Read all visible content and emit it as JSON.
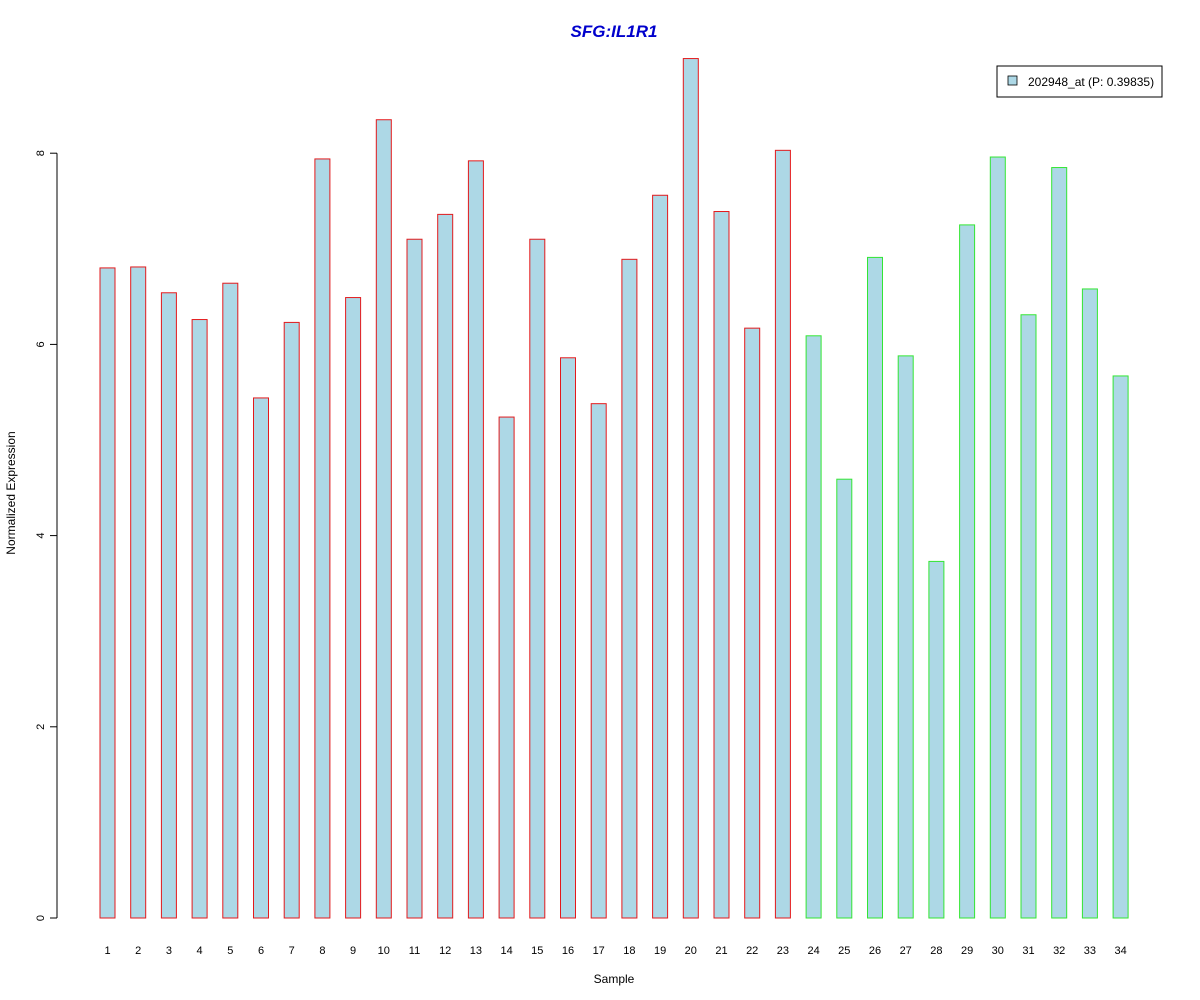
{
  "chart_data": {
    "type": "bar",
    "title": "SFG:IL1R1",
    "xlabel": "Sample",
    "ylabel": "Normalized Expression",
    "ylim": [
      0,
      9
    ],
    "y_ticks": [
      "0",
      "2",
      "4",
      "6",
      "8"
    ],
    "categories": [
      "1",
      "2",
      "3",
      "4",
      "5",
      "6",
      "7",
      "8",
      "9",
      "10",
      "11",
      "12",
      "13",
      "14",
      "15",
      "16",
      "17",
      "18",
      "19",
      "20",
      "21",
      "22",
      "23",
      "24",
      "25",
      "26",
      "27",
      "28",
      "29",
      "30",
      "31",
      "32",
      "33",
      "34"
    ],
    "series": [
      {
        "name": "202948_at (P: 0.39835)",
        "values": [
          6.8,
          6.81,
          6.54,
          6.26,
          6.64,
          5.44,
          6.23,
          7.94,
          6.49,
          8.35,
          7.1,
          7.36,
          7.92,
          5.24,
          7.1,
          5.86,
          5.38,
          6.89,
          7.56,
          8.99,
          7.39,
          6.17,
          8.03,
          6.09,
          4.59,
          6.91,
          5.88,
          3.73,
          7.25,
          7.96,
          6.31,
          7.85,
          6.58,
          5.67
        ]
      }
    ],
    "group_colors": [
      "#e31a1c",
      "#e31a1c",
      "#e31a1c",
      "#e31a1c",
      "#e31a1c",
      "#e31a1c",
      "#e31a1c",
      "#e31a1c",
      "#e31a1c",
      "#e31a1c",
      "#e31a1c",
      "#e31a1c",
      "#e31a1c",
      "#e31a1c",
      "#e31a1c",
      "#e31a1c",
      "#e31a1c",
      "#e31a1c",
      "#e31a1c",
      "#e31a1c",
      "#e31a1c",
      "#e31a1c",
      "#e31a1c",
      "#33e633",
      "#33e633",
      "#33e633",
      "#33e633",
      "#33e633",
      "#33e633",
      "#33e633",
      "#33e633",
      "#33e633",
      "#33e633",
      "#33e633"
    ],
    "bar_fill": "#add8e6",
    "title_color": "#0000cc",
    "legend": {
      "label": "202948_at (P: 0.39835)",
      "placement": "top-right"
    },
    "grid": false
  }
}
